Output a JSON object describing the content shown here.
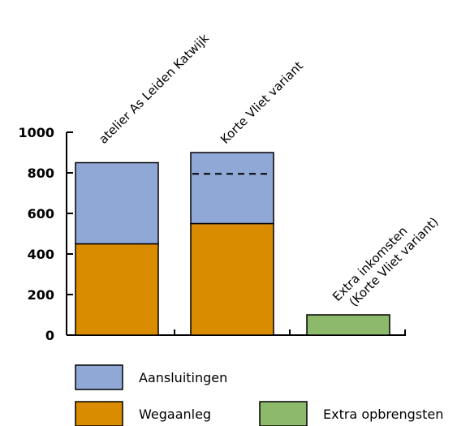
{
  "chart_data": {
    "type": "bar",
    "stacked": true,
    "ylim": [
      0,
      1000
    ],
    "yticks": [
      0,
      200,
      400,
      600,
      800,
      1000
    ],
    "tick_labels": [
      "0",
      "200",
      "400",
      "600",
      "800",
      "1000"
    ],
    "categories": [
      {
        "label_lines": [
          "atelier As Leiden Katwijk"
        ]
      },
      {
        "label_lines": [
          "Korte Vliet variant"
        ]
      },
      {
        "label_lines": [
          "Extra inkomsten",
          "(Korte Vliet variant)"
        ]
      }
    ],
    "series": [
      {
        "name": "Wegaanleg",
        "color": "#D98C00",
        "values": [
          450,
          550,
          0
        ]
      },
      {
        "name": "Aansluitingen",
        "color": "#8FA8D6",
        "values": [
          400,
          350,
          0
        ]
      },
      {
        "name": "Extra opbrengsten",
        "color": "#8DBA6A",
        "values": [
          0,
          0,
          100
        ]
      }
    ],
    "annotations": [
      {
        "type": "dashed-line",
        "category_index": 1,
        "value": 795
      }
    ],
    "legend": {
      "placement": "bottom"
    },
    "grid": false
  }
}
